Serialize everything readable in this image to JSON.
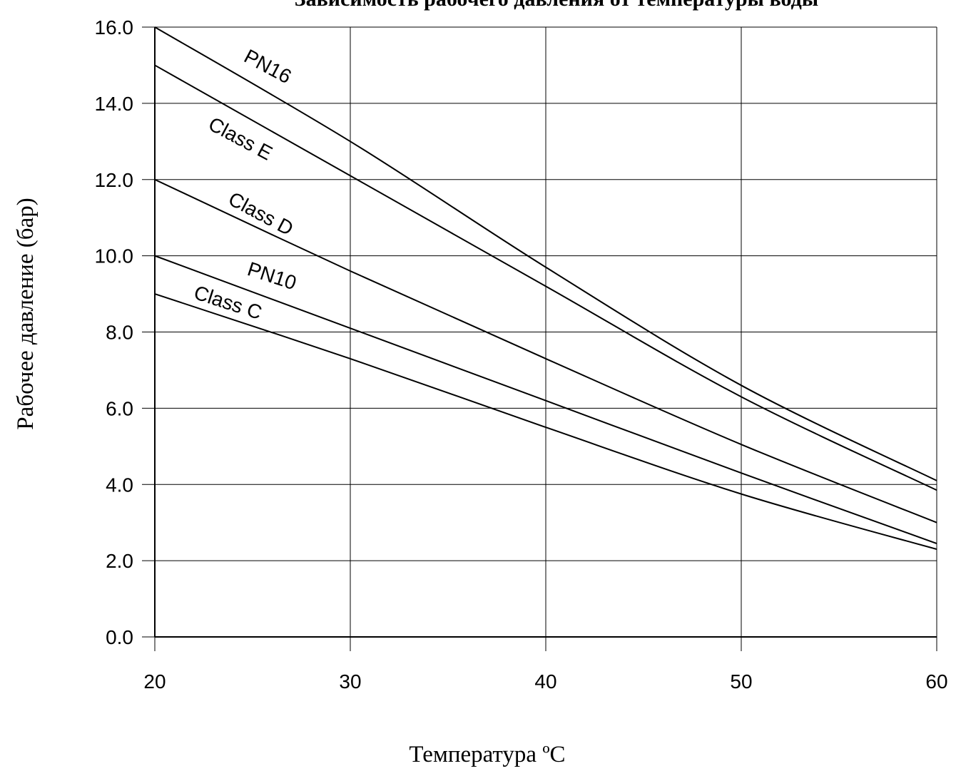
{
  "chart_data": {
    "type": "line",
    "title": "Зависимость рабочего давления от температуры воды",
    "xlabel": "Температура ºC",
    "ylabel": "Рабочее давление (бар)",
    "xlim": [
      20,
      60
    ],
    "ylim": [
      0,
      16
    ],
    "xticks": [
      20,
      30,
      40,
      50,
      60
    ],
    "yticks": [
      0.0,
      2.0,
      4.0,
      6.0,
      8.0,
      10.0,
      12.0,
      14.0,
      16.0
    ],
    "ytick_labels": [
      "0.0",
      "2.0",
      "4.0",
      "6.0",
      "8.0",
      "10.0",
      "12.0",
      "14.0",
      "16.0"
    ],
    "grid": true,
    "x": [
      20,
      30,
      40,
      50,
      60
    ],
    "series": [
      {
        "name": "PN16",
        "values": [
          16.0,
          13.0,
          9.7,
          6.6,
          4.1
        ]
      },
      {
        "name": "Class E",
        "values": [
          15.0,
          12.1,
          9.2,
          6.3,
          3.85
        ]
      },
      {
        "name": "Class D",
        "values": [
          12.0,
          9.6,
          7.3,
          5.05,
          3.0
        ]
      },
      {
        "name": "PN10",
        "values": [
          10.0,
          8.1,
          6.2,
          4.3,
          2.45
        ]
      },
      {
        "name": "Class C",
        "values": [
          9.0,
          7.3,
          5.5,
          3.75,
          2.3
        ]
      }
    ]
  }
}
